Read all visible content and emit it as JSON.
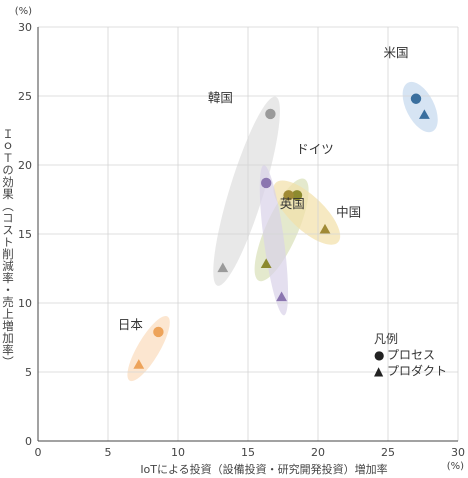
{
  "chart_data": {
    "type": "scatter",
    "xlabel": "IoTによる投資（設備投資・研究開発投資）増加率",
    "ylabel": "ＩｏＴの効果（コスト削減率・売上増加率）",
    "x_unit": "(%)",
    "y_unit": "(%)",
    "xlim": [
      0,
      30
    ],
    "ylim": [
      0,
      30
    ],
    "xticks": [
      "0",
      "5",
      "10",
      "15",
      "20",
      "25",
      "30"
    ],
    "yticks": [
      "0",
      "5",
      "10",
      "15",
      "20",
      "25",
      "30"
    ],
    "grid": true,
    "legend": {
      "title": "凡例",
      "items": [
        {
          "symbol": "circle",
          "label": "プロセス"
        },
        {
          "symbol": "triangle",
          "label": "プロダクト"
        }
      ],
      "placement": "bottom-right"
    },
    "series": [
      {
        "name": "米国",
        "color": "#3a6f9e",
        "ellipse_color": "#c5d9ee",
        "points": [
          {
            "type": "プロセス",
            "x": 27.0,
            "y": 24.8
          },
          {
            "type": "プロダクト",
            "x": 27.6,
            "y": 23.6
          }
        ]
      },
      {
        "name": "韓国",
        "color": "#9a9a9a",
        "ellipse_color": "#dedede",
        "points": [
          {
            "type": "プロセス",
            "x": 16.6,
            "y": 23.7
          },
          {
            "type": "プロダクト",
            "x": 13.2,
            "y": 12.5
          }
        ]
      },
      {
        "name": "ドイツ",
        "color": "#8c8a2e",
        "ellipse_color": "#d8e0b8",
        "points": [
          {
            "type": "プロセス",
            "x": 18.5,
            "y": 17.8
          },
          {
            "type": "プロダクト",
            "x": 16.3,
            "y": 12.8
          }
        ]
      },
      {
        "name": "中国",
        "color": "#a08a35",
        "ellipse_color": "#f2e0a8",
        "points": [
          {
            "type": "プロセス",
            "x": 17.9,
            "y": 17.8
          },
          {
            "type": "プロダクト",
            "x": 20.5,
            "y": 15.3
          }
        ]
      },
      {
        "name": "英国",
        "color": "#8b76b0",
        "ellipse_color": "#d9d2e8",
        "points": [
          {
            "type": "プロセス",
            "x": 16.3,
            "y": 18.7
          },
          {
            "type": "プロダクト",
            "x": 17.4,
            "y": 10.4
          }
        ]
      },
      {
        "name": "日本",
        "color": "#eda35a",
        "ellipse_color": "#fbdcbc",
        "points": [
          {
            "type": "プロセス",
            "x": 8.6,
            "y": 7.9
          },
          {
            "type": "プロダクト",
            "x": 7.2,
            "y": 5.5
          }
        ]
      }
    ]
  }
}
